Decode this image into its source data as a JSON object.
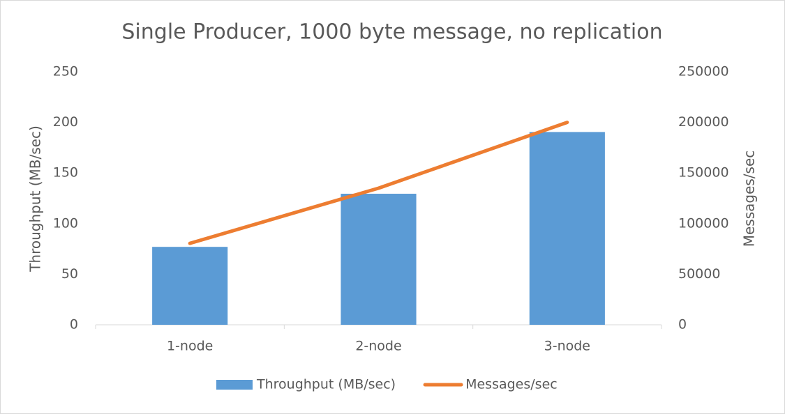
{
  "chart_data": {
    "type": "bar",
    "title": "Single Producer, 1000 byte message, no replication",
    "categories": [
      "1-node",
      "2-node",
      "3-node"
    ],
    "series": [
      {
        "name": "Throughput (MB/sec)",
        "type": "bar",
        "color": "#5b9bd5",
        "values": [
          77,
          129.5,
          190.5
        ]
      },
      {
        "name": "Messages/sec",
        "type": "line",
        "axis": "y2",
        "color": "#ed7d31",
        "values": [
          80500,
          135000,
          200000
        ]
      }
    ],
    "ylabel": "Throughput (MB/sec)",
    "y2label": "Messages/sec",
    "ylim": [
      0,
      250
    ],
    "yticks": [
      0,
      50,
      100,
      150,
      200,
      250
    ],
    "y2lim": [
      0,
      250000
    ],
    "y2ticks": [
      0,
      50000,
      100000,
      150000,
      200000,
      250000
    ],
    "grid": false,
    "legend": "bottom"
  }
}
